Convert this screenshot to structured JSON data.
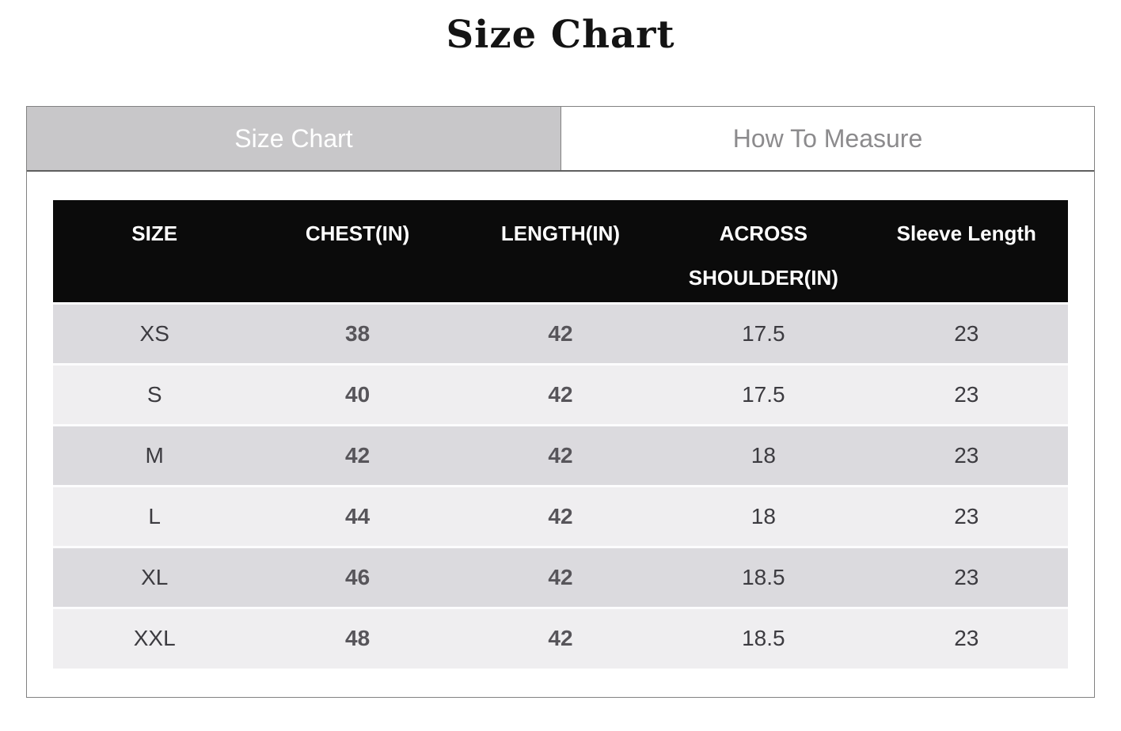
{
  "page": {
    "title": "Size Chart"
  },
  "tabs": [
    {
      "label": "Size Chart",
      "active": true
    },
    {
      "label": "How To Measure",
      "active": false
    }
  ],
  "size_table": {
    "columns": [
      "SIZE",
      "CHEST(IN)",
      "LENGTH(IN)",
      "ACROSS SHOULDER(IN)",
      "Sleeve Length"
    ],
    "rows": [
      {
        "size": "XS",
        "chest": "38",
        "length": "42",
        "across_shoulder": "17.5",
        "sleeve_length": "23"
      },
      {
        "size": "S",
        "chest": "40",
        "length": "42",
        "across_shoulder": "17.5",
        "sleeve_length": "23"
      },
      {
        "size": "M",
        "chest": "42",
        "length": "42",
        "across_shoulder": "18",
        "sleeve_length": "23"
      },
      {
        "size": "L",
        "chest": "44",
        "length": "42",
        "across_shoulder": "18",
        "sleeve_length": "23"
      },
      {
        "size": "XL",
        "chest": "46",
        "length": "42",
        "across_shoulder": "18.5",
        "sleeve_length": "23"
      },
      {
        "size": "XXL",
        "chest": "48",
        "length": "42",
        "across_shoulder": "18.5",
        "sleeve_length": "23"
      }
    ]
  },
  "colors": {
    "header_bg": "#0b0b0b",
    "header_text": "#ffffff",
    "active_tab_bg": "#c8c7c9",
    "active_tab_text": "#ffffff",
    "inactive_tab_text": "#8c8b8d",
    "row_odd_bg": "#dbdade",
    "row_even_bg": "#efeef0",
    "row_text": "#3c3b40",
    "row_text_strong": "#57555a",
    "container_border": "#828282",
    "tab_divider": "#5f5f5f"
  }
}
